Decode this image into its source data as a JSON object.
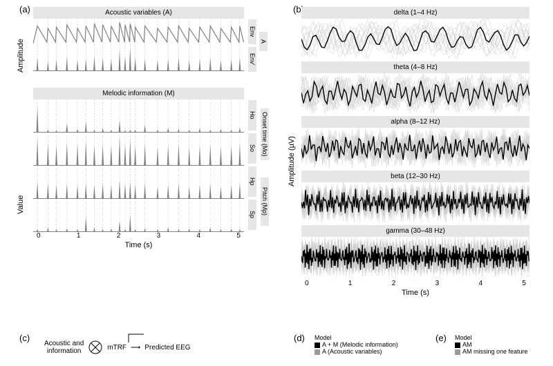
{
  "labels": {
    "panel_a": "(a)",
    "panel_b": "(b)",
    "panel_c": "(c)",
    "panel_d": "(d)",
    "panel_e": "(e)",
    "acoustic_title": "Acoustic variables (A)",
    "melodic_title": "Melodic information (M)",
    "amplitude": "Amplitude",
    "value": "Value",
    "amplitude_uv": "Amplitude (µV)",
    "time_s": "Time (s)",
    "env": "Env",
    "envp": "Env'",
    "ho": "Ho",
    "so": "So",
    "hp": "Hp",
    "sp": "Sp",
    "a_group": "A",
    "onset_group": "Onset time (Mo)",
    "pitch_group": "Pitch (Mp)",
    "delta": "delta (1–4 Hz)",
    "theta": "theta (4–8 Hz)",
    "alpha": "alpha (8–12 Hz)",
    "beta": "beta (12–30 Hz)",
    "gamma": "gamma (30–48 Hz)",
    "flow1": "Acoustic and",
    "flow2": "information",
    "mtrf": "mTRF",
    "predicted": "Predicted EEG",
    "model": "Model",
    "leg_am": "A + M (Melodic information)",
    "leg_av": "A (Acoustic variables)",
    "leg_AM": "AM",
    "leg_miss": "AM missing one feature"
  },
  "axis": {
    "xmin": 0,
    "xmax": 5,
    "xticks": [
      0,
      1,
      2,
      3,
      4,
      5
    ]
  },
  "colors": {
    "bg": "#ffffff",
    "title_bg": "#e6e6e6",
    "line_main": "#808080",
    "line_dark": "#000000",
    "line_ghost": "#c8c8c8",
    "grid": "#cccccc",
    "legend_black": "#000000",
    "legend_gray": "#9a9a9a"
  },
  "onsets": [
    0.1,
    0.35,
    0.55,
    0.8,
    1.05,
    1.25,
    1.45,
    1.65,
    1.85,
    2.05,
    2.18,
    2.3,
    2.42,
    2.65,
    2.95,
    3.2,
    3.45,
    3.7,
    3.95,
    4.2,
    4.45,
    4.7,
    4.9
  ],
  "env_heights": [
    0.8,
    0.7,
    0.75,
    0.85,
    0.7,
    0.8,
    0.9,
    0.85,
    0.8,
    0.95,
    0.85,
    0.9,
    0.75,
    0.8,
    0.7,
    0.75,
    0.8,
    0.7,
    0.75,
    0.8,
    0.7,
    0.75,
    0.8
  ],
  "envp_heights": [
    0.55,
    0.4,
    0.45,
    0.6,
    0.45,
    0.5,
    0.6,
    0.55,
    0.5,
    0.85,
    0.6,
    0.95,
    0.55,
    0.5,
    0.45,
    0.5,
    0.55,
    0.45,
    0.5,
    0.55,
    0.45,
    0.5,
    0.55
  ],
  "ho_heights": [
    0.85,
    0.1,
    0.08,
    0.3,
    0.12,
    0.35,
    0.1,
    0.15,
    0.1,
    0.4,
    0.08,
    0.1,
    0.1,
    0.25,
    0.1,
    0.15,
    0.12,
    0.1,
    0.15,
    0.1,
    0.12,
    0.1,
    0.15
  ],
  "so_heights": [
    0.9,
    0.7,
    0.65,
    0.75,
    0.7,
    0.8,
    0.65,
    0.7,
    0.65,
    0.95,
    0.7,
    0.85,
    0.65,
    0.7,
    0.6,
    0.65,
    0.7,
    0.6,
    0.65,
    0.7,
    0.6,
    0.65,
    0.7
  ],
  "hp_heights": [
    0.55,
    0.5,
    0.45,
    0.5,
    0.45,
    0.5,
    0.45,
    0.5,
    0.45,
    0.6,
    0.5,
    0.55,
    0.45,
    0.5,
    0.4,
    0.45,
    0.5,
    0.4,
    0.45,
    0.5,
    0.4,
    0.45,
    0.5
  ],
  "sp_heights": [
    0.1,
    0.15,
    0.1,
    0.12,
    0.1,
    0.5,
    0.15,
    0.1,
    0.12,
    0.35,
    0.1,
    0.55,
    0.1,
    0.12,
    0.1,
    0.15,
    0.1,
    0.12,
    0.1,
    0.15,
    0.1,
    0.12,
    0.1
  ],
  "eeg": {
    "bands": [
      "delta",
      "theta",
      "alpha",
      "beta",
      "gamma"
    ],
    "freq_hint": {
      "delta": 2.5,
      "theta": 6,
      "alpha": 10,
      "beta": 20,
      "gamma": 38
    },
    "ghost_count": 12
  },
  "sizes": {
    "left_panel_w": 305,
    "left_panel_h_small": 38,
    "right_panel_w": 330,
    "right_panel_h": 58
  }
}
